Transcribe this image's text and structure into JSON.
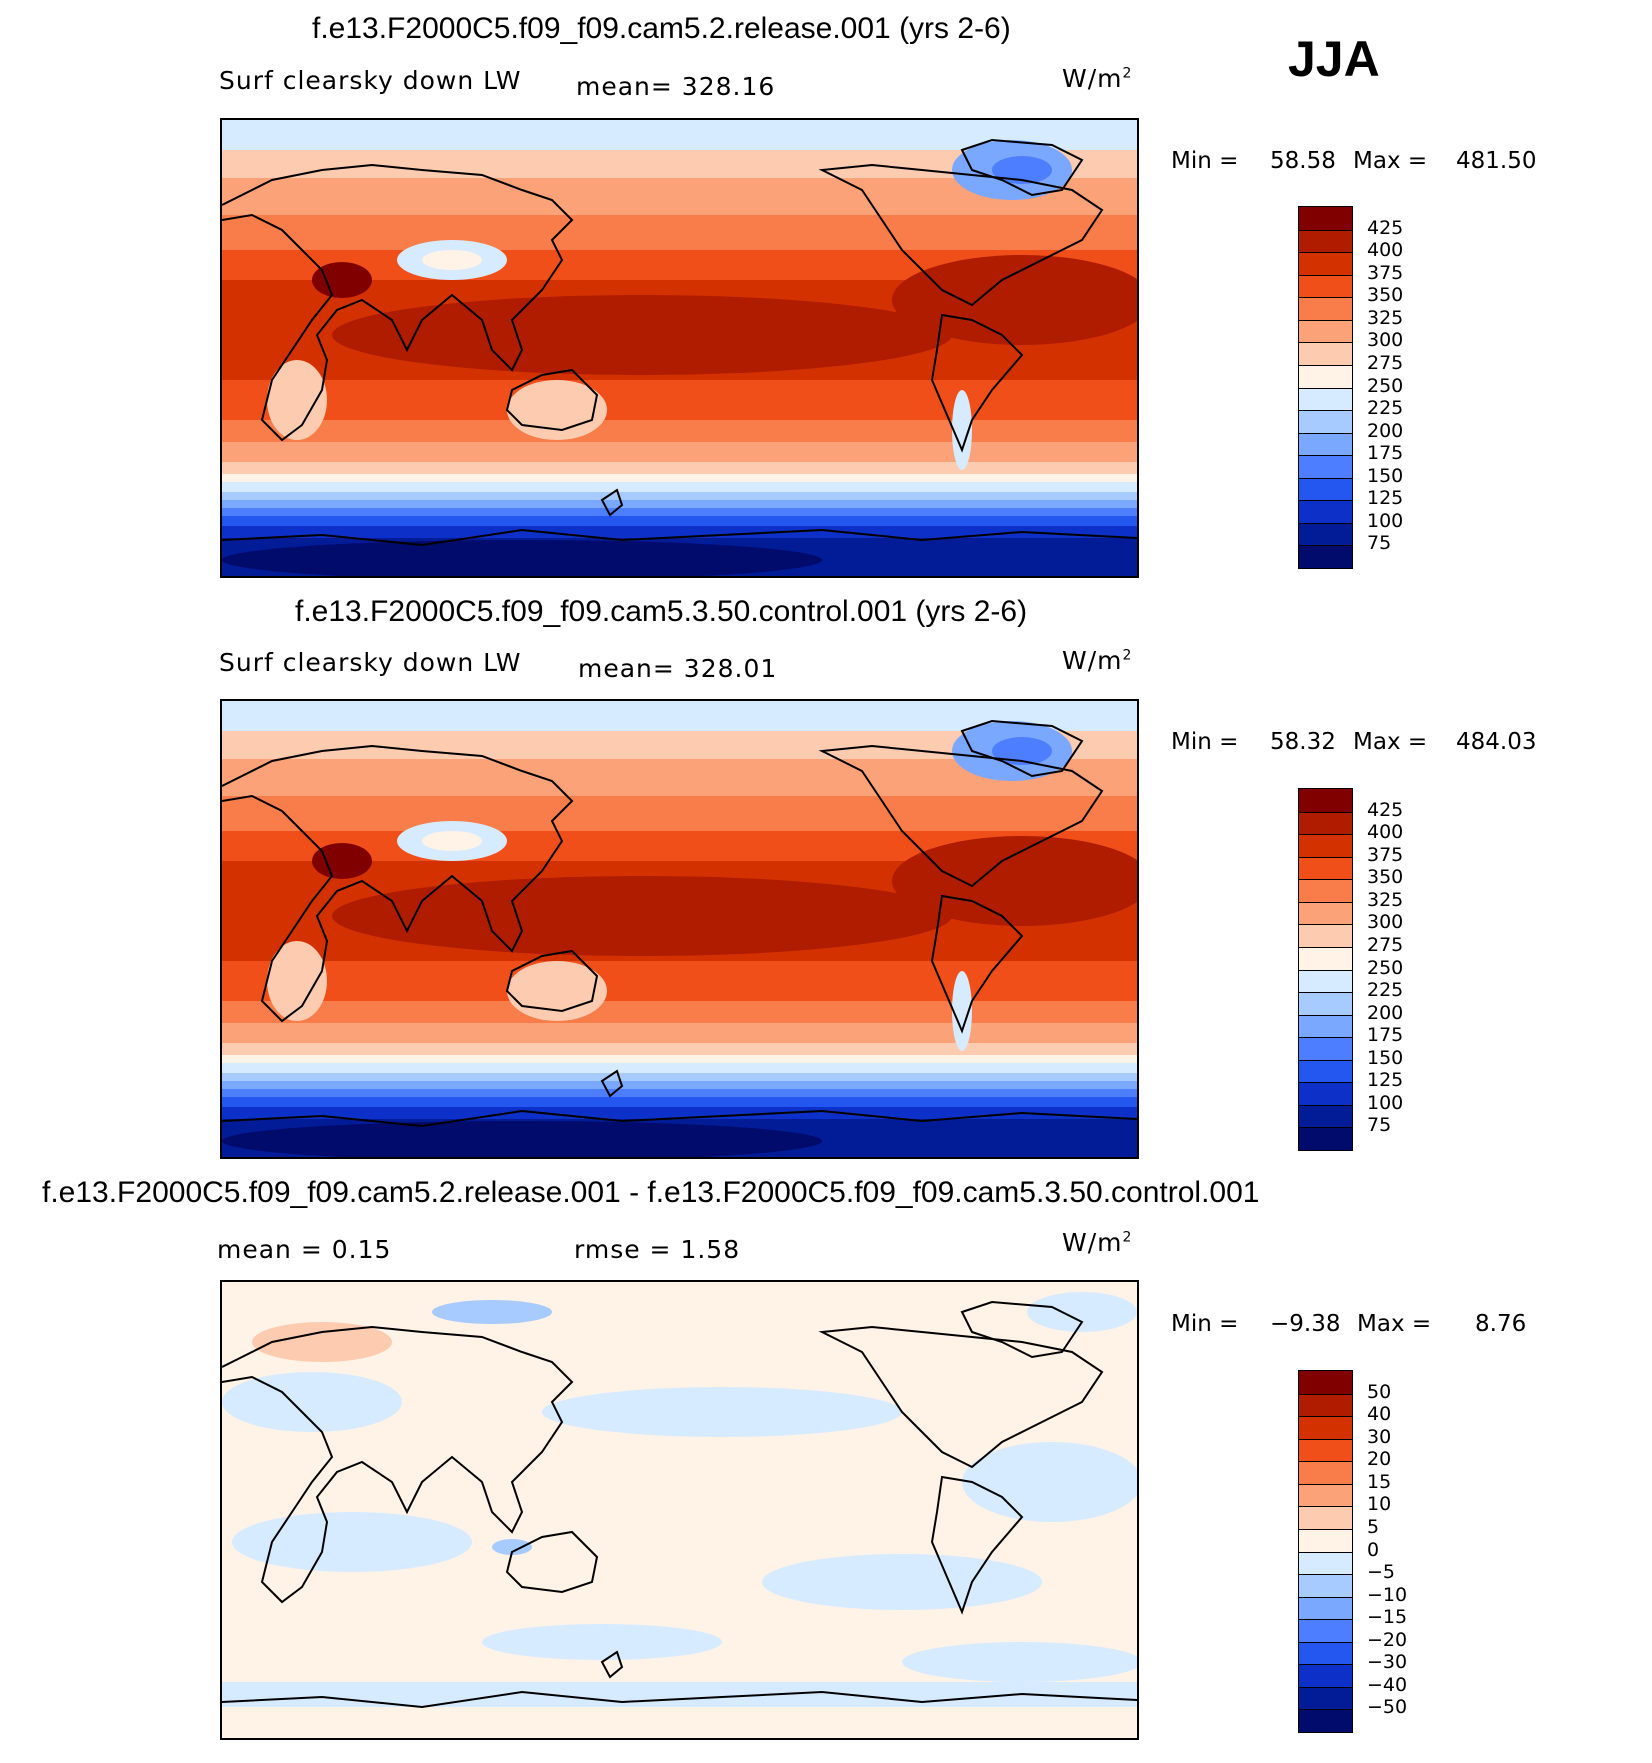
{
  "season": "JJA",
  "panels": [
    {
      "title": "f.e13.F2000C5.f09_f09.cam5.2.release.001 (yrs 2-6)",
      "variable": "Surf clearsky down LW",
      "stat_text": "mean=  328.16",
      "units": "W/m",
      "units_sup": "2",
      "min_label": "Min =",
      "min_value": "58.58",
      "max_label": "Max =",
      "max_value": "481.50",
      "colorbar": {
        "labels": [
          "425",
          "400",
          "375",
          "350",
          "325",
          "300",
          "275",
          "250",
          "225",
          "200",
          "175",
          "150",
          "125",
          "100",
          "75"
        ],
        "colors": [
          "#800000",
          "#b01c00",
          "#d33200",
          "#f04f1a",
          "#f87d4a",
          "#fba279",
          "#fdcbb0",
          "#fff2e6",
          "#d6ebff",
          "#a8cbff",
          "#7aa7ff",
          "#4d7eff",
          "#2456f0",
          "#0d30c8",
          "#021b96",
          "#000b6b"
        ]
      }
    },
    {
      "title": "f.e13.F2000C5.f09_f09.cam5.3.50.control.001 (yrs 2-6)",
      "variable": "Surf clearsky down LW",
      "stat_text": "mean=  328.01",
      "units": "W/m",
      "units_sup": "2",
      "min_label": "Min =",
      "min_value": "58.32",
      "max_label": "Max =",
      "max_value": "484.03",
      "colorbar": {
        "labels": [
          "425",
          "400",
          "375",
          "350",
          "325",
          "300",
          "275",
          "250",
          "225",
          "200",
          "175",
          "150",
          "125",
          "100",
          "75"
        ],
        "colors": [
          "#800000",
          "#b01c00",
          "#d33200",
          "#f04f1a",
          "#f87d4a",
          "#fba279",
          "#fdcbb0",
          "#fff2e6",
          "#d6ebff",
          "#a8cbff",
          "#7aa7ff",
          "#4d7eff",
          "#2456f0",
          "#0d30c8",
          "#021b96",
          "#000b6b"
        ]
      }
    },
    {
      "title": "f.e13.F2000C5.f09_f09.cam5.2.release.001 - f.e13.F2000C5.f09_f09.cam5.3.50.control.001",
      "mean_text": "mean =     0.15",
      "rmse_text": "rmse =     1.58",
      "units": "W/m",
      "units_sup": "2",
      "min_label": "Min =",
      "min_value": "−9.38",
      "max_label": "Max =",
      "max_value": "8.76",
      "colorbar": {
        "labels": [
          "50",
          "40",
          "30",
          "20",
          "15",
          "10",
          "5",
          "0",
          "−5",
          "−10",
          "−15",
          "−20",
          "−30",
          "−40",
          "−50"
        ],
        "colors": [
          "#800000",
          "#b01c00",
          "#d33200",
          "#f04f1a",
          "#f87d4a",
          "#fba279",
          "#fdcbb0",
          "#fff2e6",
          "#d6ebff",
          "#a8cbff",
          "#7aa7ff",
          "#4d7eff",
          "#2456f0",
          "#0d30c8",
          "#021b96",
          "#000b6b"
        ]
      }
    }
  ]
}
